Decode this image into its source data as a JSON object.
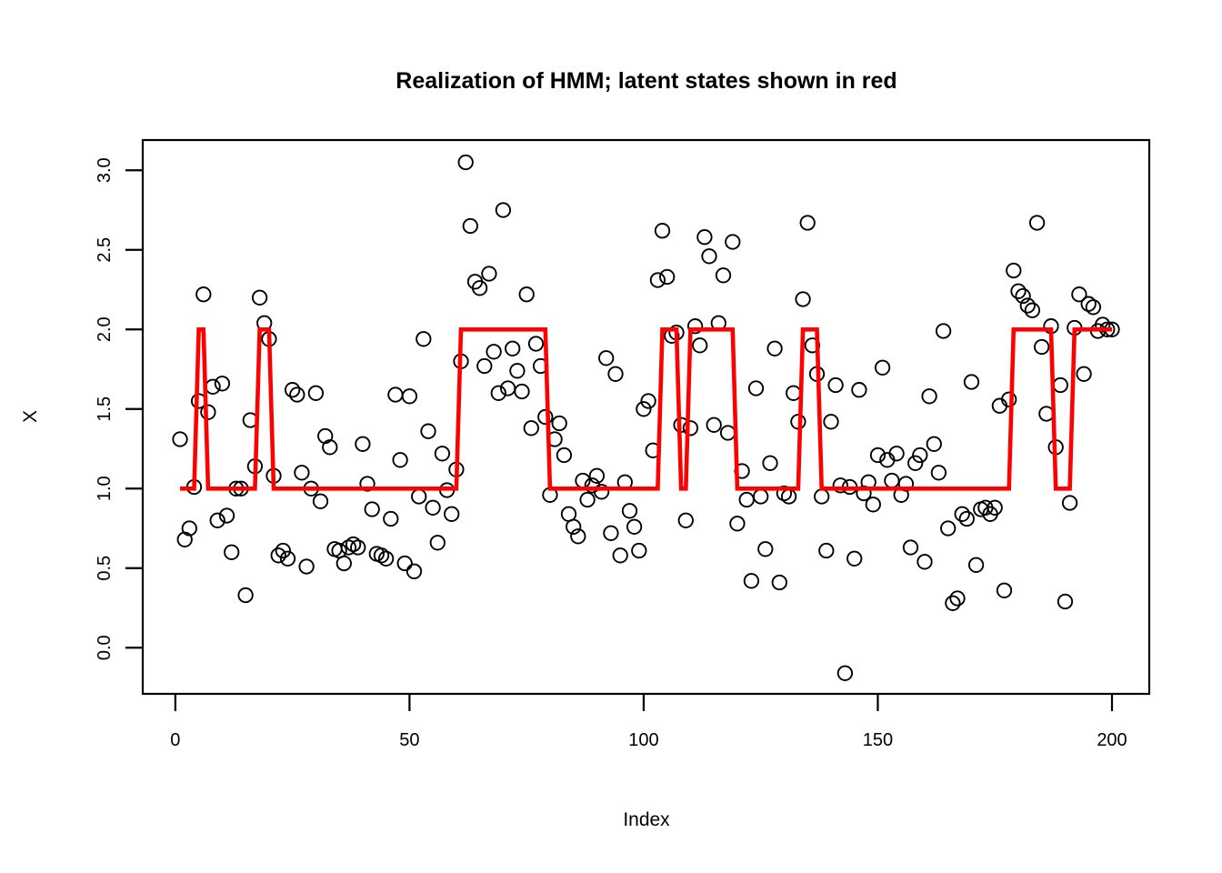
{
  "chart_data": {
    "type": "scatter",
    "title": "Realization of HMM; latent states shown in red",
    "xlabel": "Index",
    "ylabel": "X",
    "x_ticks": [
      0,
      50,
      100,
      150,
      200
    ],
    "y_ticks": [
      0.0,
      0.5,
      1.0,
      1.5,
      2.0,
      2.5,
      3.0
    ],
    "xlim": [
      -6.96,
      207.96
    ],
    "ylim": [
      -0.29,
      3.19
    ],
    "grid": false,
    "legend": "none",
    "point_color": "#000000",
    "state_line_color": "#FF0000",
    "x_start": 1,
    "n": 200,
    "series": [
      {
        "name": "observations",
        "type": "points",
        "marker": "open-circle",
        "values": [
          1.31,
          0.68,
          0.75,
          1.01,
          1.55,
          2.22,
          1.48,
          1.64,
          0.8,
          1.66,
          0.83,
          0.6,
          1.0,
          1.0,
          0.33,
          1.43,
          1.14,
          2.2,
          2.04,
          1.94,
          1.08,
          0.58,
          0.61,
          0.56,
          1.62,
          1.59,
          1.1,
          0.51,
          1.0,
          1.6,
          0.92,
          1.33,
          1.26,
          0.62,
          0.61,
          0.53,
          0.63,
          0.65,
          0.63,
          1.28,
          1.03,
          0.87,
          0.59,
          0.58,
          0.56,
          0.81,
          1.59,
          1.18,
          0.53,
          1.58,
          0.48,
          0.95,
          1.94,
          1.36,
          0.88,
          0.66,
          1.22,
          0.99,
          0.84,
          1.12,
          1.8,
          3.05,
          2.65,
          2.3,
          2.26,
          1.77,
          2.35,
          1.86,
          1.6,
          2.75,
          1.63,
          1.88,
          1.74,
          1.61,
          2.22,
          1.38,
          1.91,
          1.77,
          1.45,
          0.96,
          1.31,
          1.41,
          1.21,
          0.84,
          0.76,
          0.7,
          1.05,
          0.93,
          1.02,
          1.08,
          0.98,
          1.82,
          0.72,
          1.72,
          0.58,
          1.04,
          0.86,
          0.76,
          0.61,
          1.5,
          1.55,
          1.24,
          2.31,
          2.62,
          2.33,
          1.96,
          1.98,
          1.4,
          0.8,
          1.38,
          2.02,
          1.9,
          2.58,
          2.46,
          1.4,
          2.04,
          2.34,
          1.35,
          2.55,
          0.78,
          1.11,
          0.93,
          0.42,
          1.63,
          0.95,
          0.62,
          1.16,
          1.88,
          0.41,
          0.97,
          0.95,
          1.6,
          1.42,
          2.19,
          2.67,
          1.9,
          1.72,
          0.95,
          0.61,
          1.42,
          1.65,
          1.02,
          -0.16,
          1.01,
          0.56,
          1.62,
          0.97,
          1.04,
          0.9,
          1.21,
          1.76,
          1.18,
          1.05,
          1.22,
          0.96,
          1.03,
          0.63,
          1.16,
          1.21,
          0.54,
          1.58,
          1.28,
          1.1,
          1.99,
          0.75,
          0.28,
          0.31,
          0.84,
          0.81,
          1.67,
          0.52,
          0.87,
          0.88,
          0.84,
          0.88,
          1.52,
          0.36,
          1.56,
          2.37,
          2.24,
          2.21,
          2.15,
          2.12,
          2.67,
          1.89,
          1.47,
          2.02,
          1.26,
          1.65,
          0.29,
          0.91,
          2.01,
          2.22,
          1.72,
          2.16,
          2.14,
          1.99,
          2.03,
          2.0,
          2.0
        ]
      },
      {
        "name": "latent-states",
        "type": "step-line",
        "description": "state value per index run: [first_index, last_index, state]",
        "state_runs": [
          [
            1,
            4,
            1
          ],
          [
            5,
            6,
            2
          ],
          [
            7,
            17,
            1
          ],
          [
            18,
            20,
            2
          ],
          [
            21,
            60,
            1
          ],
          [
            61,
            79,
            2
          ],
          [
            80,
            103,
            1
          ],
          [
            104,
            107,
            2
          ],
          [
            108,
            109,
            1
          ],
          [
            110,
            119,
            2
          ],
          [
            120,
            133,
            1
          ],
          [
            134,
            137,
            2
          ],
          [
            138,
            178,
            1
          ],
          [
            179,
            187,
            2
          ],
          [
            188,
            191,
            1
          ],
          [
            192,
            200,
            2
          ]
        ]
      }
    ]
  }
}
